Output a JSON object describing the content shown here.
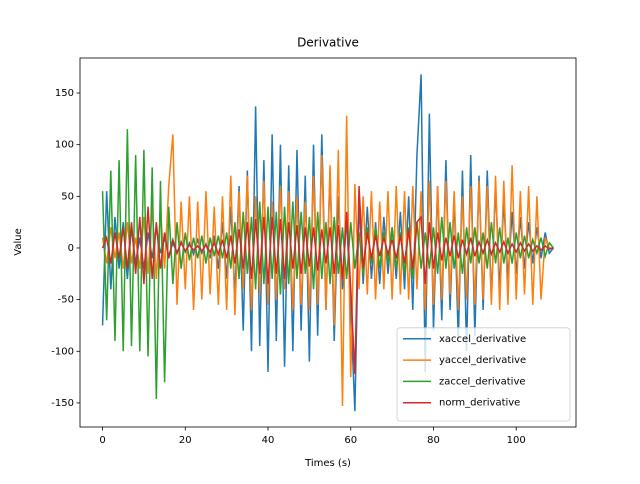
{
  "chart_data": {
    "type": "line",
    "title": "Derivative",
    "x_label": "Times (s)",
    "y_label": "Value",
    "xlim": [
      -5.45,
      114.45
    ],
    "ylim": [
      -173.3,
      183.9
    ],
    "xticks": [
      0,
      20,
      40,
      60,
      80,
      100
    ],
    "yticks": [
      -150,
      -100,
      -50,
      0,
      50,
      100,
      150
    ],
    "legend": "lower right",
    "x": [
      0,
      1,
      2,
      3,
      4,
      5,
      6,
      7,
      8,
      9,
      10,
      11,
      12,
      13,
      14,
      15,
      16,
      17,
      18,
      19,
      20,
      21,
      22,
      23,
      24,
      25,
      26,
      27,
      28,
      29,
      30,
      31,
      32,
      33,
      34,
      35,
      36,
      37,
      38,
      39,
      40,
      41,
      42,
      43,
      44,
      45,
      46,
      47,
      48,
      49,
      50,
      51,
      52,
      53,
      54,
      55,
      56,
      57,
      58,
      59,
      60,
      61,
      62,
      63,
      64,
      65,
      66,
      67,
      68,
      69,
      70,
      71,
      72,
      73,
      74,
      75,
      76,
      77,
      78,
      79,
      80,
      81,
      82,
      83,
      84,
      85,
      86,
      87,
      88,
      89,
      90,
      91,
      92,
      93,
      94,
      95,
      96,
      97,
      98,
      99,
      100,
      101,
      102,
      103,
      104,
      105,
      106,
      107,
      108,
      109
    ],
    "series": [
      {
        "name": "xaccel_derivative",
        "color": "#1f77b4",
        "values": [
          -75,
          55,
          -40,
          30,
          -20,
          25,
          -30,
          20,
          -15,
          10,
          -20,
          15,
          -10,
          20,
          -5,
          10,
          -8,
          5,
          -5,
          6,
          -4,
          5,
          -6,
          8,
          -5,
          4,
          -10,
          12,
          -20,
          25,
          -30,
          40,
          -45,
          60,
          -80,
          75,
          -100,
          137,
          -95,
          85,
          -120,
          110,
          -90,
          100,
          -115,
          80,
          -100,
          95,
          -80,
          70,
          -110,
          100,
          -85,
          110,
          -60,
          75,
          -90,
          50,
          -40,
          30,
          -60,
          -158,
          45,
          -35,
          40,
          -30,
          25,
          -35,
          30,
          -25,
          20,
          -30,
          35,
          -40,
          50,
          -60,
          90,
          168,
          -120,
          130,
          -80,
          60,
          -70,
          85,
          -60,
          50,
          -90,
          75,
          -100,
          90,
          -85,
          70,
          -60,
          75,
          -50,
          60,
          -40,
          45,
          -30,
          35,
          -25,
          30,
          -20,
          25,
          -15,
          20,
          -10,
          15,
          -5,
          0
        ]
      },
      {
        "name": "yaccel_derivative",
        "color": "#ff7f0e",
        "values": [
          10,
          -15,
          20,
          -10,
          15,
          -20,
          25,
          -15,
          10,
          -20,
          30,
          -25,
          40,
          -30,
          35,
          -20,
          60,
          110,
          -55,
          45,
          -40,
          50,
          -60,
          45,
          -50,
          55,
          -45,
          40,
          -55,
          50,
          -60,
          70,
          -65,
          55,
          -40,
          70,
          -60,
          50,
          -45,
          65,
          -55,
          45,
          -50,
          60,
          -40,
          55,
          -60,
          50,
          -55,
          45,
          -60,
          70,
          -55,
          90,
          -60,
          80,
          -75,
          95,
          -153,
          128,
          -125,
          62,
          -40,
          50,
          -45,
          55,
          -50,
          45,
          -40,
          55,
          -50,
          60,
          -45,
          55,
          -50,
          60,
          -40,
          55,
          -60,
          65,
          -55,
          60,
          -50,
          65,
          -45,
          55,
          -60,
          50,
          -50,
          60,
          -55,
          65,
          -50,
          60,
          -55,
          70,
          -60,
          65,
          -55,
          80,
          -50,
          55,
          -45,
          60,
          -55,
          50,
          -50,
          10,
          0,
          0
        ]
      },
      {
        "name": "zaccel_derivative",
        "color": "#2ca02c",
        "values": [
          55,
          -70,
          75,
          -90,
          85,
          -100,
          115,
          -95,
          90,
          -100,
          95,
          -105,
          78,
          -146,
          65,
          -130,
          40,
          -35,
          25,
          -20,
          15,
          -12,
          10,
          -10,
          12,
          -15,
          10,
          -8,
          12,
          -10,
          15,
          -20,
          25,
          -30,
          35,
          -25,
          30,
          -40,
          45,
          -35,
          40,
          -30,
          35,
          -45,
          40,
          -35,
          45,
          -30,
          35,
          -25,
          30,
          -40,
          35,
          -30,
          25,
          -35,
          30,
          -25,
          20,
          -30,
          25,
          -20,
          15,
          -25,
          20,
          -15,
          20,
          -20,
          15,
          -15,
          20,
          -20,
          15,
          -25,
          20,
          -30,
          25,
          -20,
          15,
          -20,
          20,
          -25,
          30,
          -20,
          25,
          -20,
          15,
          -25,
          20,
          -15,
          20,
          -15,
          15,
          -20,
          25,
          -15,
          20,
          -15,
          10,
          -15,
          15,
          -10,
          12,
          -10,
          8,
          -5,
          10,
          -8,
          5,
          0
        ]
      },
      {
        "name": "norm_derivative",
        "color": "#d62728",
        "values": [
          0,
          10,
          -15,
          15,
          -10,
          20,
          -20,
          25,
          -25,
          30,
          -35,
          40,
          -30,
          25,
          -20,
          15,
          -10,
          8,
          -5,
          5,
          -3,
          3,
          -2,
          2,
          -3,
          3,
          -4,
          5,
          -6,
          8,
          -10,
          12,
          -15,
          18,
          -20,
          25,
          -30,
          28,
          -25,
          30,
          -35,
          30,
          -25,
          28,
          -30,
          25,
          -20,
          22,
          -25,
          20,
          -18,
          20,
          -22,
          18,
          -15,
          20,
          -25,
          22,
          -30,
          35,
          -40,
          -122,
          60,
          -20,
          15,
          -10,
          12,
          -8,
          10,
          -6,
          8,
          -10,
          12,
          -15,
          18,
          -20,
          25,
          30,
          -35,
          25,
          -20,
          15,
          -12,
          10,
          -8,
          12,
          -10,
          8,
          -6,
          10,
          -8,
          6,
          -5,
          8,
          -6,
          5,
          -4,
          6,
          -5,
          4,
          -4,
          5,
          -3,
          4,
          -3,
          2,
          -2,
          2,
          -1,
          0
        ]
      }
    ]
  }
}
